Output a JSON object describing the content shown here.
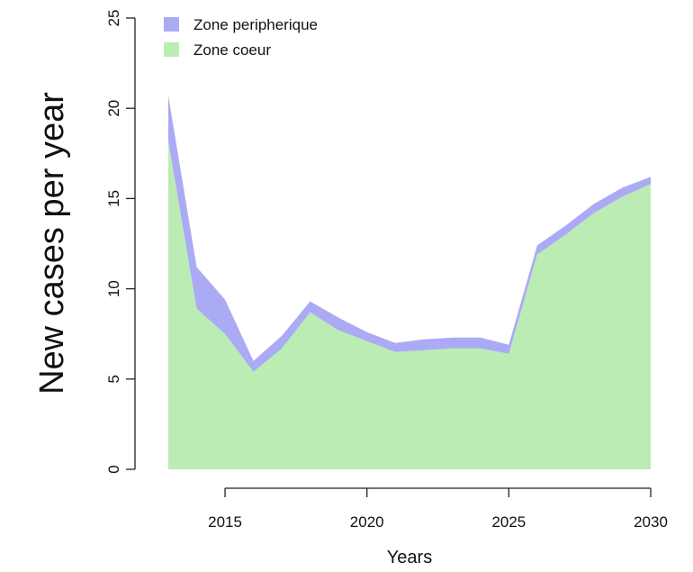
{
  "chart_data": {
    "type": "area",
    "x": [
      2013,
      2014,
      2015,
      2016,
      2017,
      2018,
      2019,
      2020,
      2021,
      2022,
      2023,
      2024,
      2025,
      2026,
      2027,
      2028,
      2029,
      2030
    ],
    "series": [
      {
        "name": "Zone coeur",
        "color": "#bbecb3",
        "values": [
          18.2,
          8.9,
          7.5,
          5.4,
          6.7,
          8.7,
          7.7,
          7.1,
          6.5,
          6.6,
          6.7,
          6.7,
          6.4,
          11.9,
          13.0,
          14.2,
          15.1,
          15.8
        ]
      },
      {
        "name": "Zone peripherique",
        "color": "#aaaaf5",
        "values": [
          2.5,
          2.3,
          1.9,
          0.6,
          0.7,
          0.6,
          0.7,
          0.5,
          0.5,
          0.6,
          0.6,
          0.6,
          0.5,
          0.5,
          0.5,
          0.5,
          0.5,
          0.4
        ]
      }
    ],
    "stacked": true,
    "xlabel": "Years",
    "ylabel": "New cases per year",
    "xlim": [
      2013,
      2030
    ],
    "xticks": [
      2015,
      2020,
      2025,
      2030
    ],
    "ylim": [
      0,
      25
    ],
    "yticks": [
      0,
      5,
      10,
      15,
      20,
      25
    ],
    "legend": "top-left"
  }
}
